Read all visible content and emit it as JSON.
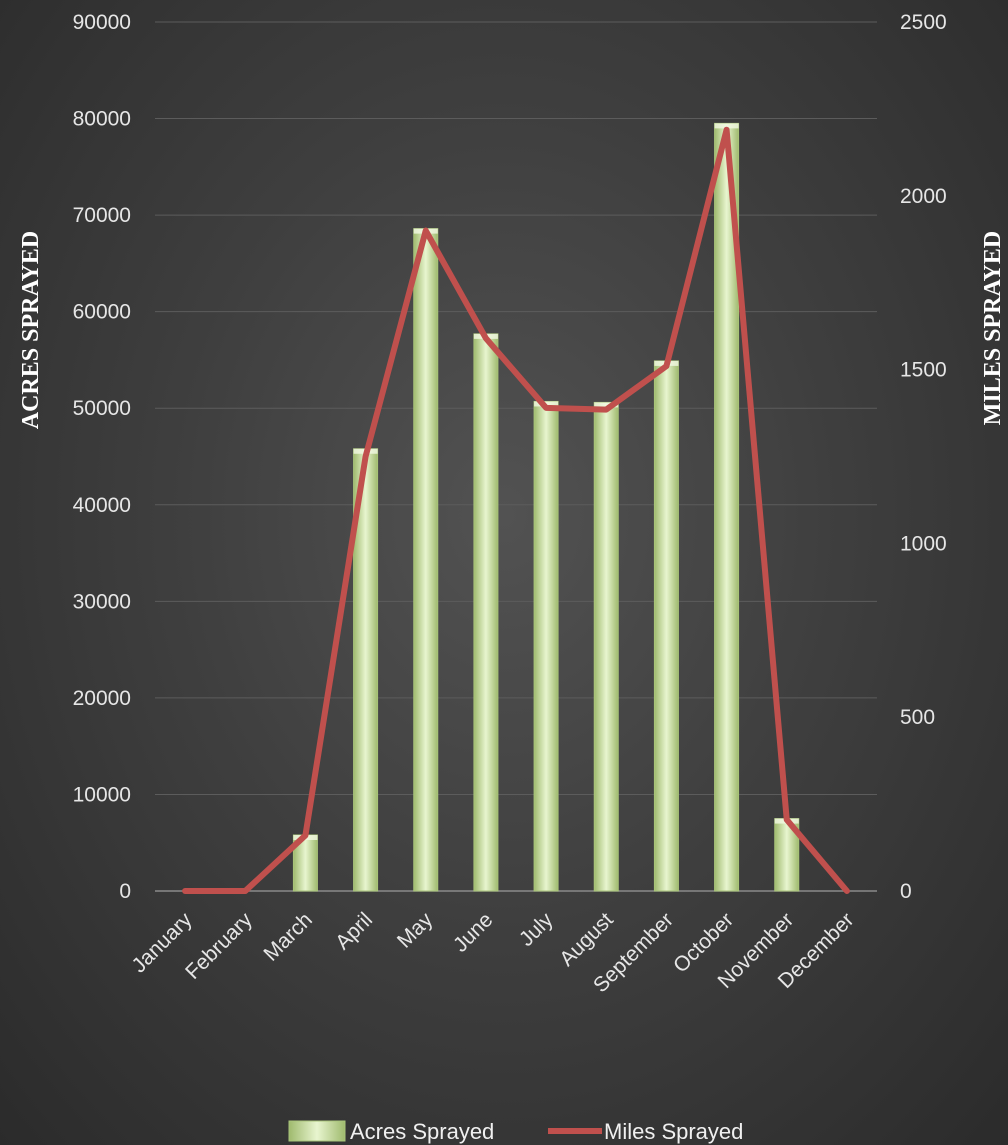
{
  "chart_data": {
    "type": "bar+line",
    "categories": [
      "January",
      "February",
      "March",
      "April",
      "May",
      "June",
      "July",
      "August",
      "September",
      "October",
      "November",
      "December"
    ],
    "series": [
      {
        "name": "Acres Sprayed",
        "type": "bar",
        "axis": "left",
        "values": [
          0,
          0,
          5800,
          45800,
          68600,
          57700,
          50700,
          50600,
          54900,
          79500,
          7500,
          0
        ]
      },
      {
        "name": "Miles Sprayed",
        "type": "line",
        "axis": "right",
        "values": [
          0,
          0,
          160,
          1250,
          1900,
          1590,
          1390,
          1385,
          1510,
          2190,
          205,
          0
        ]
      }
    ],
    "ylabel": "ACRES SPRAYED",
    "y2label": "MILES SPRAYED",
    "ylim": [
      0,
      90000
    ],
    "yticks": [
      "0",
      "10000",
      "20000",
      "30000",
      "40000",
      "50000",
      "60000",
      "70000",
      "80000",
      "90000"
    ],
    "y2lim": [
      0,
      2500
    ],
    "y2ticks": [
      "0",
      "500",
      "1000",
      "1500",
      "2000",
      "2500"
    ],
    "grid": true,
    "legend_position": "bottom",
    "colors": {
      "bar_fill": "#c6dc9c",
      "bar_edge": "#a9c47a",
      "line": "#c0504d",
      "grid": "#5c5c5c",
      "axis": "#8a8a8a"
    }
  }
}
